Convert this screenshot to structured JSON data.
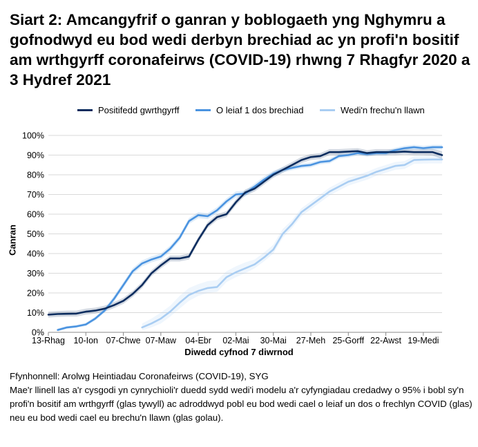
{
  "title": "Siart 2: Amcangyfrif o ganran y boblogaeth yng Nghymru a gofnodwyd eu bod wedi derbyn brechiad ac yn profi'n bositif am wrthgyrff coronafeirws (COVID-19) rhwng 7 Rhagfyr 2020 a 3 Hydref 2021",
  "legend": [
    {
      "label": "Positifedd gwrthgyrff",
      "color": "#0b2c5e"
    },
    {
      "label": "O leiaf 1 dos brechiad",
      "color": "#4a93e0"
    },
    {
      "label": "Wedi'n frechu'n llawn",
      "color": "#a9cdf2"
    }
  ],
  "footer": {
    "source": "Ffynhonnell: Arolwg Heintiadau Coronafeirws (COVID-19), SYG",
    "note": "Mae'r llinell las a'r cysgodi yn cynrychioli'r duedd sydd wedi'i modelu a'r cyfyngiadau credadwy o 95% i bobl sy'n profi'n bositif am wrthgyrff (glas tywyll) ac adroddwyd pobl eu bod wedi cael o leiaf un dos o frechlyn COVID (glas) neu eu bod wedi cael eu brechu'n llawn (glas golau)."
  },
  "chart_data": {
    "type": "line",
    "xlabel": "Diwedd cyfnod 7 diwrnod",
    "ylabel": "Canran",
    "ylim": [
      0,
      100
    ],
    "yticks": [
      "0%",
      "10%",
      "20%",
      "30%",
      "40%",
      "50%",
      "60%",
      "70%",
      "80%",
      "90%",
      "100%"
    ],
    "x_ticks": [
      {
        "index": 0,
        "label": "13-Rhag"
      },
      {
        "index": 4,
        "label": "10-Ion"
      },
      {
        "index": 8,
        "label": "07-Chwe"
      },
      {
        "index": 12,
        "label": "07-Maw"
      },
      {
        "index": 16,
        "label": "04-Ebr"
      },
      {
        "index": 20,
        "label": "02-Mai"
      },
      {
        "index": 24,
        "label": "30-Mai"
      },
      {
        "index": 28,
        "label": "27-Meh"
      },
      {
        "index": 32,
        "label": "25-Gorff"
      },
      {
        "index": 36,
        "label": "22-Awst"
      },
      {
        "index": 40,
        "label": "19-Medi"
      }
    ],
    "n_points": 43,
    "grid": true,
    "legend_position": "top",
    "series": [
      {
        "name": "Positifedd gwrthgyrff",
        "color": "#0b2c5e",
        "start": 0,
        "values": [
          9.0,
          9.3,
          9.4,
          9.5,
          10.5,
          11.0,
          12.0,
          13.8,
          16.0,
          19.5,
          24.0,
          30.0,
          34.0,
          37.5,
          37.5,
          38.5,
          47.0,
          54.5,
          58.5,
          60.0,
          66.0,
          71.0,
          73.0,
          76.5,
          80.0,
          82.5,
          85.0,
          87.5,
          89.0,
          89.5,
          91.5,
          91.5,
          91.8,
          92.0,
          91.0,
          91.5,
          91.5,
          91.5,
          91.8,
          91.5,
          91.5,
          91.5,
          90.0
        ],
        "lower": [
          7.5,
          7.8,
          8.0,
          8.0,
          9.0,
          9.5,
          10.5,
          12.3,
          14.5,
          18.0,
          22.5,
          28.5,
          32.5,
          36.0,
          36.0,
          37.0,
          45.5,
          53.0,
          57.0,
          58.5,
          64.5,
          69.5,
          71.5,
          75.0,
          78.5,
          81.0,
          83.5,
          86.0,
          87.5,
          88.0,
          90.0,
          90.0,
          90.3,
          90.5,
          89.5,
          90.0,
          90.0,
          90.0,
          90.3,
          90.0,
          90.0,
          89.8,
          88.0
        ],
        "upper": [
          10.5,
          10.8,
          11.0,
          11.0,
          12.0,
          12.5,
          13.5,
          15.3,
          17.5,
          21.0,
          25.5,
          31.5,
          35.5,
          39.0,
          39.0,
          40.0,
          48.5,
          56.0,
          60.0,
          61.5,
          67.5,
          72.5,
          74.5,
          78.0,
          81.5,
          84.0,
          86.5,
          89.0,
          90.5,
          91.0,
          93.0,
          93.0,
          93.3,
          93.5,
          92.5,
          93.0,
          93.0,
          93.0,
          93.3,
          93.0,
          93.0,
          93.2,
          92.0
        ]
      },
      {
        "name": "O leiaf 1 dos brechiad",
        "color": "#4a93e0",
        "start": 1,
        "values": [
          1.2,
          2.5,
          3.0,
          4.0,
          7.0,
          11.0,
          17.0,
          24.0,
          31.0,
          35.0,
          37.0,
          38.5,
          42.5,
          48.0,
          56.5,
          59.5,
          59.0,
          62.0,
          66.5,
          70.0,
          70.5,
          74.0,
          77.5,
          80.5,
          82.5,
          83.5,
          84.5,
          85.0,
          86.5,
          87.0,
          89.5,
          90.0,
          91.0,
          90.5,
          91.0,
          91.0,
          92.5,
          93.5,
          94.0,
          93.5,
          94.0,
          94.0
        ],
        "lower": [
          0.5,
          1.8,
          2.3,
          3.2,
          6.0,
          10.0,
          15.5,
          22.5,
          29.5,
          33.5,
          35.5,
          37.0,
          41.0,
          46.5,
          55.0,
          58.0,
          57.5,
          60.5,
          65.0,
          68.5,
          69.0,
          72.5,
          76.0,
          79.0,
          81.2,
          82.3,
          83.3,
          83.8,
          85.3,
          85.8,
          88.3,
          88.8,
          89.8,
          89.3,
          89.8,
          89.8,
          91.3,
          92.3,
          92.8,
          92.3,
          92.8,
          92.8
        ],
        "upper": [
          2.0,
          3.2,
          3.7,
          4.8,
          8.0,
          12.0,
          18.5,
          25.5,
          32.5,
          36.5,
          38.5,
          40.0,
          44.0,
          49.5,
          58.0,
          61.0,
          60.5,
          63.5,
          68.0,
          71.5,
          72.0,
          75.5,
          79.0,
          82.0,
          83.8,
          84.7,
          85.7,
          86.2,
          87.7,
          88.2,
          90.7,
          91.2,
          92.2,
          91.7,
          92.2,
          92.2,
          93.7,
          94.7,
          95.2,
          94.7,
          95.2,
          95.2
        ]
      },
      {
        "name": "Wedi'n frechu'n llawn",
        "color": "#a9cdf2",
        "start": 10,
        "values": [
          2.5,
          4.5,
          7.0,
          10.5,
          15.0,
          19.0,
          21.0,
          22.5,
          23.0,
          28.0,
          30.5,
          32.5,
          34.5,
          38.0,
          42.0,
          50.0,
          55.0,
          61.0,
          64.5,
          68.0,
          71.5,
          74.0,
          76.5,
          78.0,
          79.5,
          81.5,
          83.0,
          84.5,
          85.0,
          87.5,
          87.7,
          87.8,
          87.8
        ],
        "lower": [
          1.0,
          2.5,
          4.5,
          8.0,
          12.0,
          16.0,
          18.5,
          20.0,
          20.5,
          25.5,
          28.0,
          30.0,
          32.5,
          36.0,
          40.0,
          48.0,
          53.0,
          59.0,
          62.5,
          66.0,
          69.5,
          72.0,
          74.5,
          76.0,
          77.5,
          79.5,
          81.0,
          82.5,
          83.0,
          85.5,
          85.7,
          85.8,
          85.8
        ],
        "upper": [
          4.5,
          7.0,
          10.0,
          13.5,
          18.5,
          22.5,
          24.5,
          26.0,
          26.5,
          31.0,
          33.5,
          35.5,
          37.0,
          40.5,
          44.5,
          52.5,
          57.0,
          63.0,
          66.5,
          70.0,
          73.5,
          76.0,
          78.5,
          80.0,
          81.5,
          83.5,
          85.0,
          86.5,
          87.0,
          89.5,
          89.7,
          89.8,
          89.8
        ]
      }
    ]
  }
}
